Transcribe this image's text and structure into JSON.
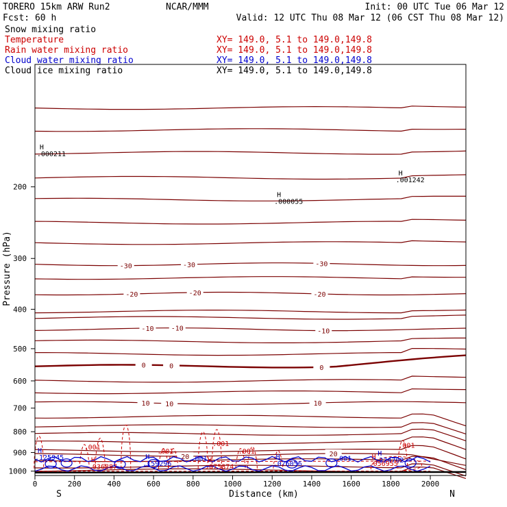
{
  "header": {
    "model": "TORERO  15km ARW   Run2",
    "org": "NCAR/MMM",
    "init": "Init: 00 UTC Tue 06 Mar 12",
    "fcst": "Fcst:   60 h",
    "valid": "Valid: 12 UTC Thu 08 Mar 12 (06 CST Thu 08 Mar 12)"
  },
  "fields": [
    {
      "name": "Snow mixing ratio",
      "range": "",
      "color": "#000000"
    },
    {
      "name": "Temperature",
      "range": "XY= 149.0,  5.1 to 149.0,149.8",
      "color": "#cc0000"
    },
    {
      "name": "Rain water mixing ratio",
      "range": "XY= 149.0,  5.1 to 149.0,149.8",
      "color": "#cc0000"
    },
    {
      "name": "Cloud water mixing ratio",
      "range": "XY= 149.0,  5.1 to 149.0,149.8",
      "color": "#0000cc"
    },
    {
      "name": "Cloud ice mixing ratio",
      "range": "XY= 149.0,  5.1 to 149.0,149.8",
      "color": "#000000"
    }
  ],
  "chart_data": {
    "type": "contour",
    "title": "",
    "xlabel": "Distance (km)",
    "ylabel": "Pressure (hPa)",
    "xlim": [
      0,
      2180
    ],
    "ylim": [
      100,
      1025
    ],
    "y_scale": "log",
    "x_ticks": [
      0,
      200,
      400,
      600,
      800,
      1000,
      1200,
      1400,
      1600,
      1800,
      2000
    ],
    "y_ticks": [
      200,
      300,
      400,
      500,
      600,
      700,
      800,
      900,
      1000
    ],
    "x_end_labels": {
      "left": "S",
      "right": "N"
    },
    "colors": {
      "temperature": "#7a0000",
      "rain": "#cc0000",
      "cloud_water": "#0000cc",
      "ice": "#000000"
    },
    "temperature_contours": [
      {
        "label": "-30",
        "label_x": [
          460,
          780,
          1450
        ],
        "pressure": 310
      },
      {
        "label": "-20",
        "label_x": [
          490,
          810,
          1440
        ],
        "pressure": 366
      },
      {
        "label": "-10",
        "label_x": [
          570,
          720,
          1460
        ],
        "pressure": 448
      },
      {
        "label": "0",
        "label_x": [
          550,
          690,
          1450
        ],
        "pressure": 552,
        "bold": true
      },
      {
        "label": "10",
        "label_x": [
          560,
          680,
          1430
        ],
        "pressure": 680
      },
      {
        "label": "20",
        "label_x": [
          760,
          1510
        ],
        "pressure": 912
      }
    ],
    "rain_labels": [
      {
        "text": ".001",
        "x": 290,
        "p": 885
      },
      {
        "text": ".001",
        "x": 660,
        "p": 905
      },
      {
        "text": ".001",
        "x": 940,
        "p": 868
      },
      {
        "text": ".001",
        "x": 1070,
        "p": 905
      },
      {
        "text": ".001",
        "x": 1880,
        "p": 876
      }
    ],
    "cloud_water_labels": [
      {
        "text": ".001",
        "x": 830,
        "p": 943
      },
      {
        "text": ".001",
        "x": 1560,
        "p": 943
      }
    ],
    "maxima": [
      {
        "text": ".000211",
        "x": 10,
        "p": 168,
        "color": "#000000"
      },
      {
        "text": ".001242",
        "x": 1825,
        "p": 195,
        "color": "#000000"
      },
      {
        "text": ".000055",
        "x": 1210,
        "p": 220,
        "color": "#000000"
      },
      {
        "text": ".125945",
        "x": 0,
        "p": 937,
        "color": "#0000cc"
      },
      {
        "text": ".159296",
        "x": 545,
        "p": 970,
        "color": "#0000cc"
      },
      {
        "text": ".076056",
        "x": 1205,
        "p": 970,
        "color": "#0000cc"
      },
      {
        "text": ".224702",
        "x": 1720,
        "p": 953,
        "color": "#0000cc"
      },
      {
        "text": ".036887",
        "x": 270,
        "p": 988,
        "color": "#cc0000"
      },
      {
        "text": ".075874",
        "x": 860,
        "p": 988,
        "color": "#cc0000"
      },
      {
        "text": ".056955",
        "x": 1690,
        "p": 970,
        "color": "#cc0000"
      }
    ]
  }
}
